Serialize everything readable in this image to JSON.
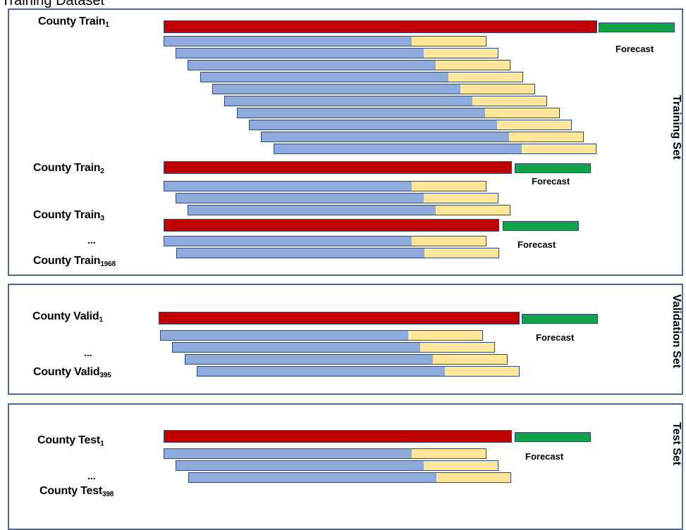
{
  "caption": "Training Dataset",
  "training": {
    "side_label": "Training Set",
    "forecast_label": "Forecast",
    "county_prefix": "County Train",
    "subscripts": [
      "1",
      "2",
      "3",
      "1968"
    ],
    "ellipsis": "..."
  },
  "validation": {
    "side_label": "Validation Set",
    "forecast_label": "Forecast",
    "county_prefix": "County Valid",
    "subscripts": [
      "1",
      "395"
    ],
    "ellipsis": "..."
  },
  "test": {
    "side_label": "Test Set",
    "forecast_label": "Forecast",
    "county_prefix": "County Test",
    "subscripts": [
      "1",
      "398"
    ],
    "ellipsis": "..."
  },
  "colors": {
    "full_series": "#c00000",
    "forecast": "#12a24a",
    "input_window": "#8faadc",
    "target_window": "#ffe699",
    "outline": "#2c4a7a"
  }
}
